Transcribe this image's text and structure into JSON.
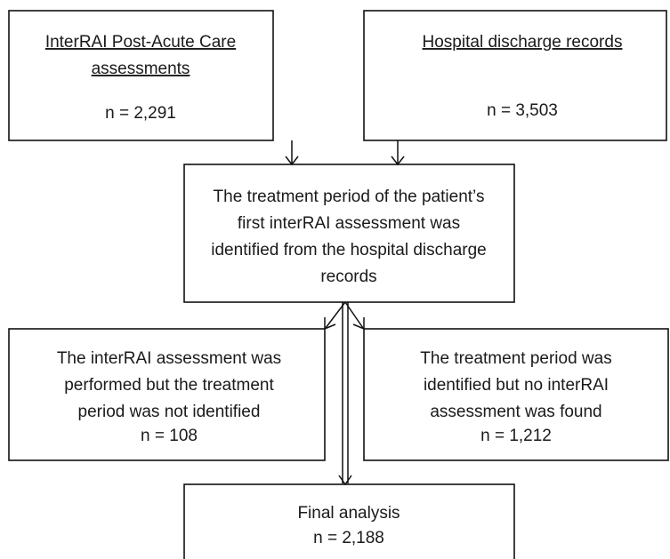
{
  "boxes": [
    {
      "title": [
        "InterRAI Post-Acute Care",
        "assessments"
      ],
      "count": "n = 2,291"
    },
    {
      "title": [
        "Hospital discharge records"
      ],
      "count": "n = 3,503"
    },
    {
      "lines": [
        "The treatment period of the patient’s",
        "first interRAI assessment was",
        "identified from the hospital discharge",
        "records"
      ]
    },
    {
      "lines": [
        "The interRAI assessment was",
        "performed but the treatment",
        "period was not identified"
      ],
      "count": "n = 108"
    },
    {
      "lines": [
        "The treatment period was",
        "identified but no interRAI",
        "assessment was found"
      ],
      "count": "n = 1,212"
    },
    {
      "lines": [
        "Final analysis"
      ],
      "count": "n = 2,188"
    }
  ]
}
